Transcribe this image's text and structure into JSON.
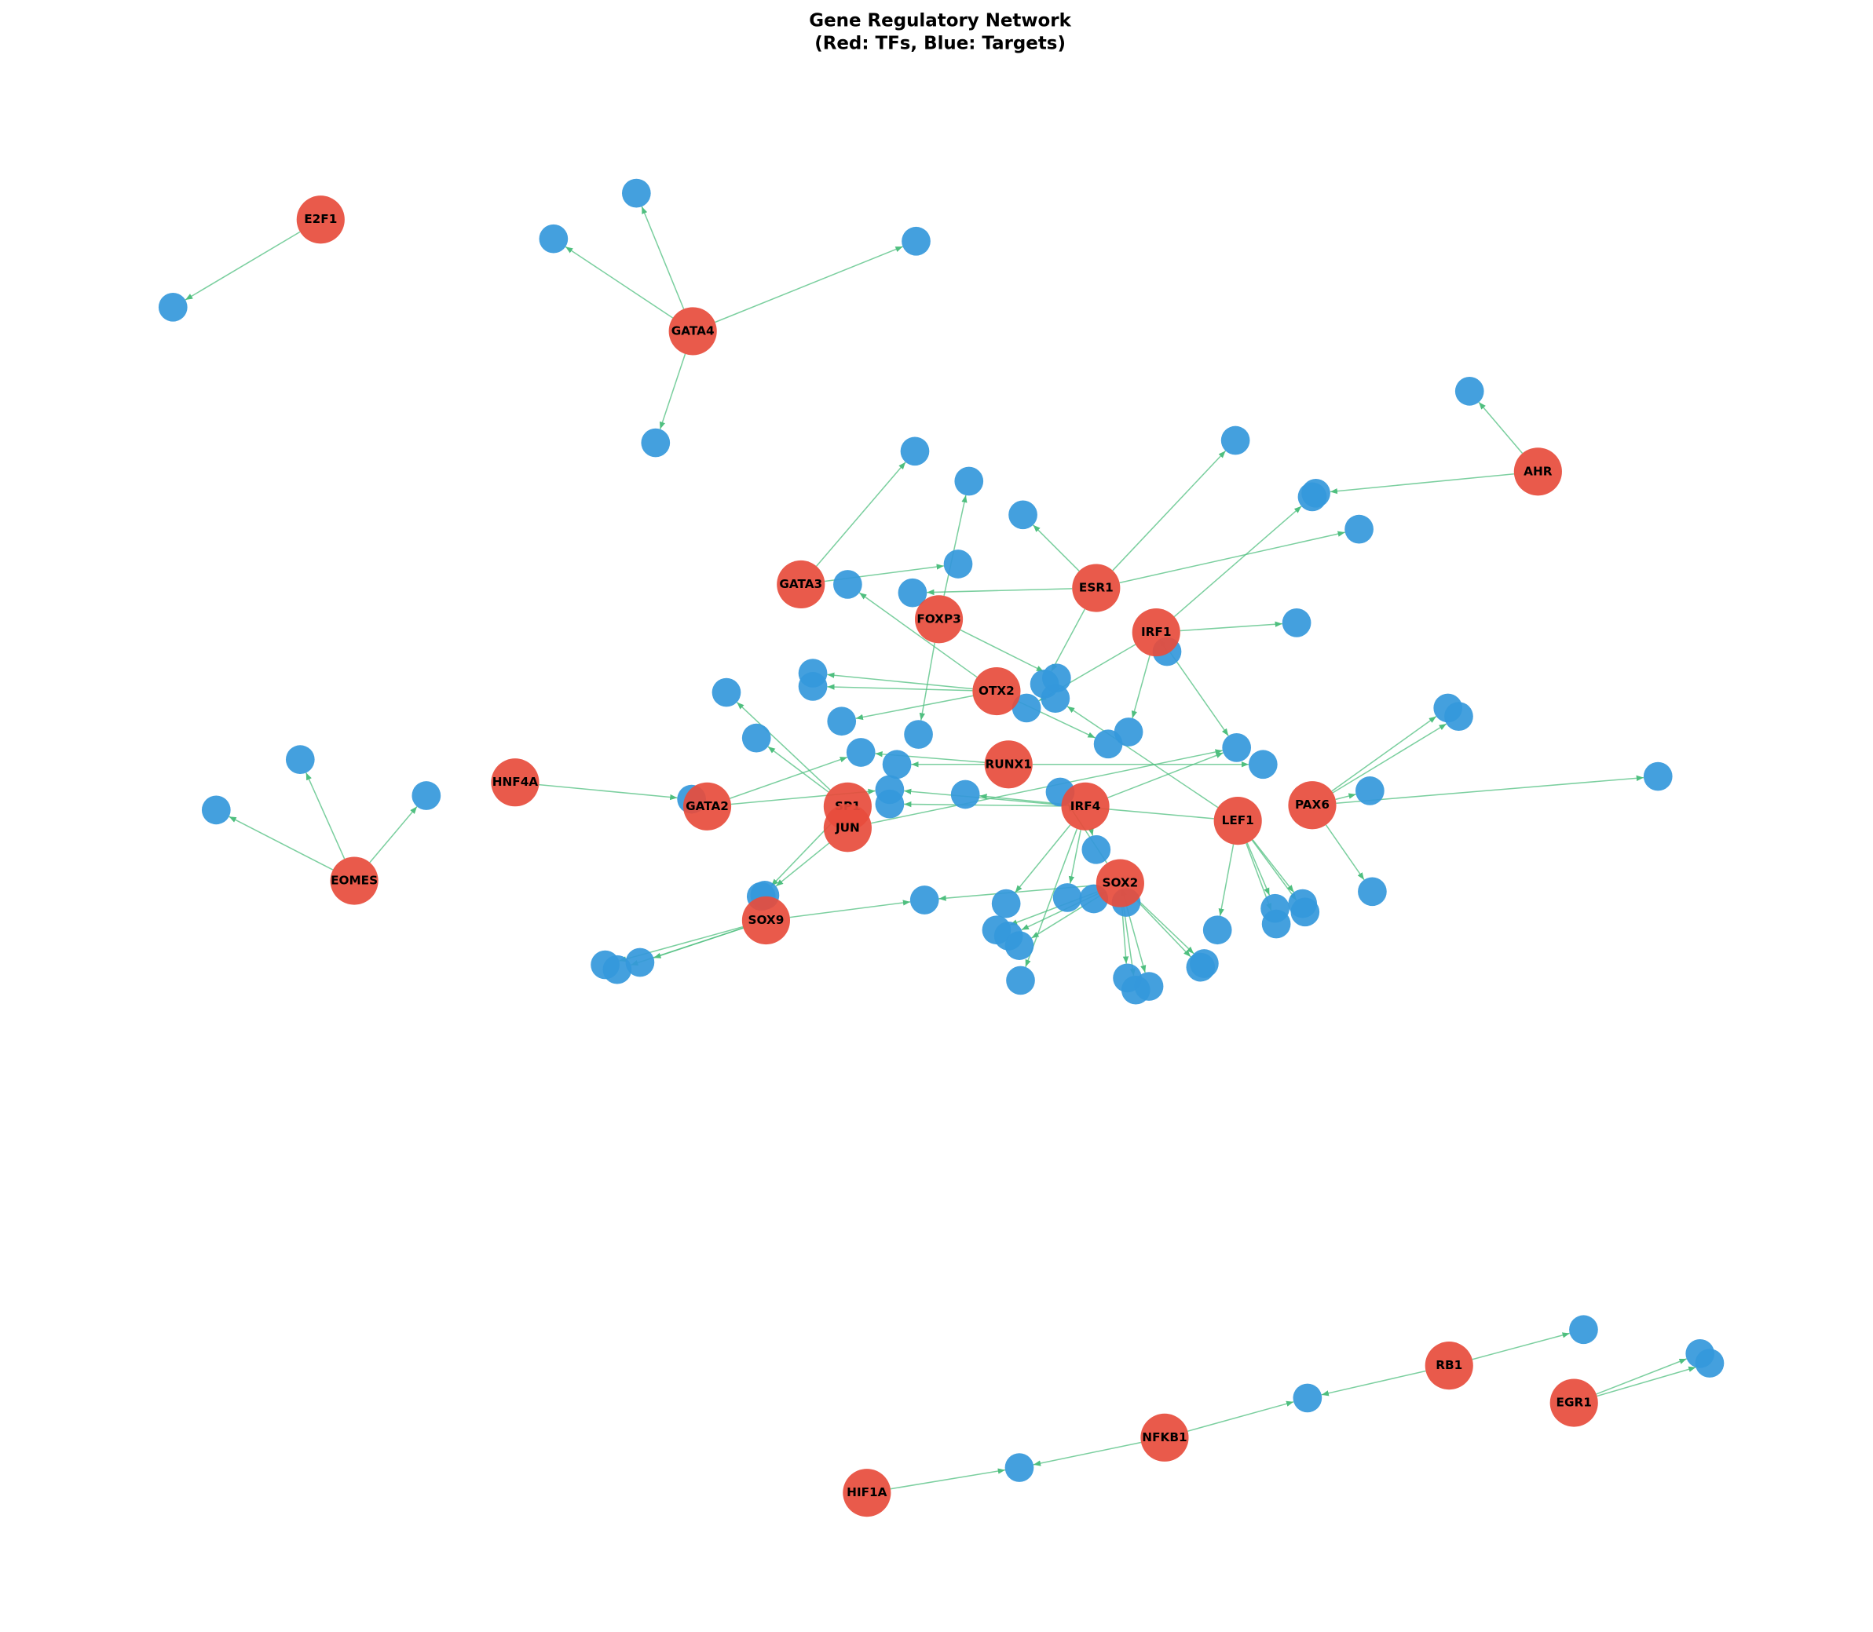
{
  "title": "Gene Regulatory Network",
  "subtitle": "(Red: TFs, Blue: Targets)",
  "nodes": [
    "E2F1",
    "GATA4",
    "AHR",
    "GATA3",
    "ESR1",
    "FOXP3",
    "IRF1",
    "OTX2",
    "RUNX1",
    "HNF4A",
    "SP1",
    "GATA2",
    "JUN",
    "IRF4",
    "LEF1",
    "PAX6",
    "EOMES",
    "SOX2",
    "SOX9",
    "RB1",
    "EGR1",
    "NFKB1",
    "HIF1A"
  ]
}
